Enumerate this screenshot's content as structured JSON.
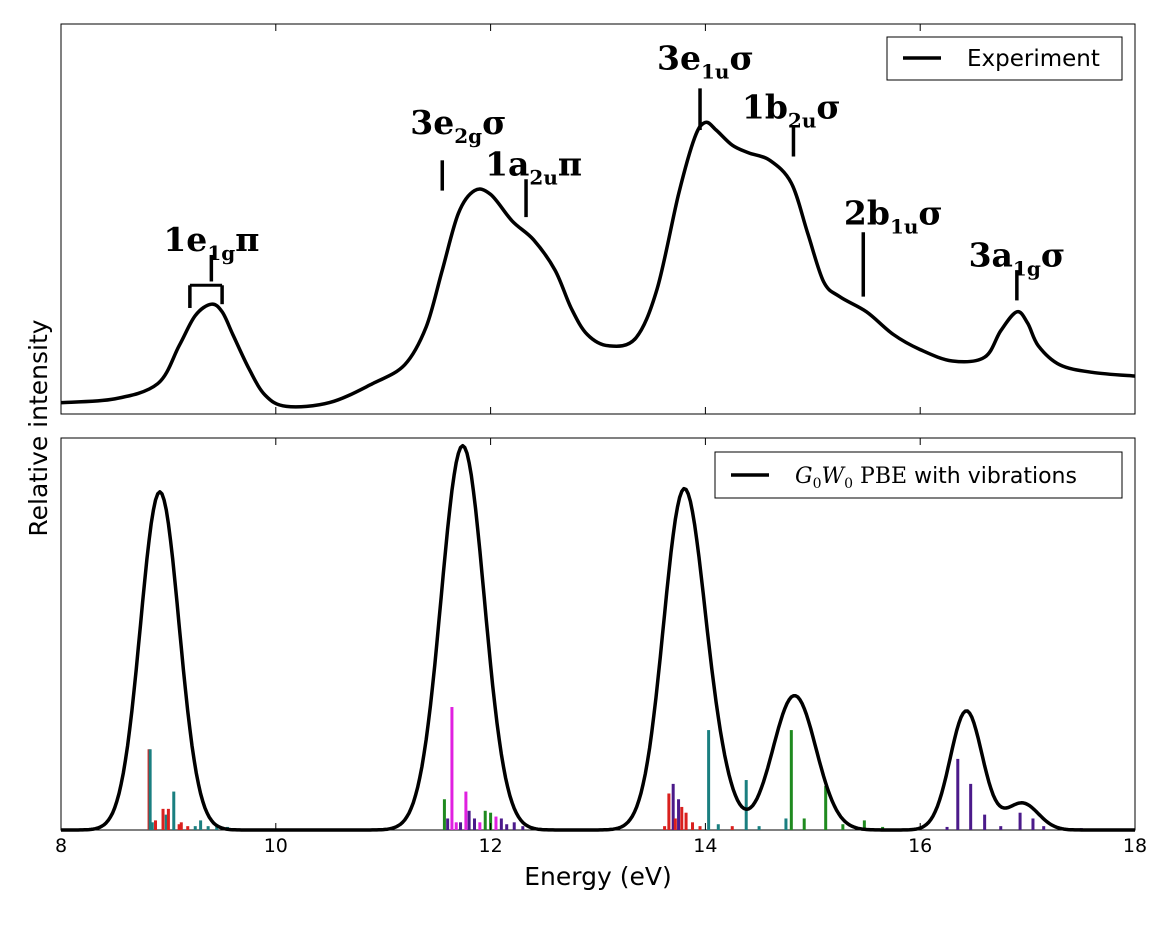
{
  "figure": {
    "ylabel": "Relative intensity",
    "xlabel": "Energy (eV)"
  },
  "chart_data": [
    {
      "type": "line",
      "panel": "top",
      "legend_position": "top-right",
      "series": [
        {
          "name": "Experiment",
          "color": "#000000",
          "x": [
            8.0,
            8.5,
            8.9,
            9.1,
            9.25,
            9.4,
            9.5,
            9.6,
            9.75,
            9.9,
            10.1,
            10.5,
            10.9,
            11.2,
            11.4,
            11.55,
            11.7,
            11.85,
            12.0,
            12.2,
            12.4,
            12.6,
            12.75,
            12.9,
            13.1,
            13.35,
            13.55,
            13.75,
            13.9,
            14.0,
            14.1,
            14.25,
            14.4,
            14.6,
            14.8,
            14.95,
            15.1,
            15.25,
            15.5,
            15.75,
            16.0,
            16.3,
            16.6,
            16.75,
            16.9,
            17.0,
            17.1,
            17.3,
            17.6,
            18.0
          ],
          "y": [
            0.0,
            0.01,
            0.05,
            0.15,
            0.23,
            0.26,
            0.24,
            0.18,
            0.09,
            0.02,
            -0.01,
            0.0,
            0.05,
            0.1,
            0.2,
            0.35,
            0.5,
            0.56,
            0.55,
            0.48,
            0.43,
            0.35,
            0.25,
            0.18,
            0.15,
            0.17,
            0.3,
            0.55,
            0.7,
            0.74,
            0.72,
            0.68,
            0.66,
            0.64,
            0.58,
            0.45,
            0.32,
            0.28,
            0.24,
            0.18,
            0.14,
            0.11,
            0.12,
            0.19,
            0.24,
            0.21,
            0.15,
            0.1,
            0.08,
            0.07
          ]
        }
      ],
      "annotations": [
        {
          "x": 9.4,
          "y": 0.4,
          "text": "1e",
          "sub": "1g",
          "sym": "π"
        },
        {
          "x": 11.7,
          "y": 0.71,
          "text": "3e",
          "sub": "2g",
          "sym": "σ"
        },
        {
          "x": 12.4,
          "y": 0.6,
          "text": "1a",
          "sub": "2u",
          "sym": "π"
        },
        {
          "x": 14.0,
          "y": 0.88,
          "text": "3e",
          "sub": "1u",
          "sym": "σ"
        },
        {
          "x": 14.8,
          "y": 0.75,
          "text": "1b",
          "sub": "2u",
          "sym": "σ"
        },
        {
          "x": 15.75,
          "y": 0.47,
          "text": "2b",
          "sub": "1u",
          "sym": "σ"
        },
        {
          "x": 16.9,
          "y": 0.36,
          "text": "3a",
          "sub": "1g",
          "sym": "σ"
        }
      ],
      "marker_ticks": [
        {
          "x": 9.4,
          "y0": 0.39,
          "y1": 0.32
        },
        {
          "x": 9.2,
          "y0": 0.31,
          "y1": 0.25
        },
        {
          "x": 9.5,
          "y0": 0.31,
          "y1": 0.26
        },
        {
          "x": 11.55,
          "y0": 0.64,
          "y1": 0.56
        },
        {
          "x": 12.33,
          "y0": 0.59,
          "y1": 0.49
        },
        {
          "x": 13.95,
          "y0": 0.83,
          "y1": 0.72
        },
        {
          "x": 14.82,
          "y0": 0.73,
          "y1": 0.65
        },
        {
          "x": 15.47,
          "y0": 0.45,
          "y1": 0.28
        },
        {
          "x": 16.9,
          "y0": 0.35,
          "y1": 0.27
        }
      ],
      "xlim": [
        8,
        18
      ],
      "ylim": [
        -0.03,
        1.0
      ]
    },
    {
      "type": "line",
      "panel": "bottom",
      "legend_position": "top-right",
      "series": [
        {
          "name": "G0W0 PBE with vibrations",
          "color": "#000000",
          "peaks": [
            {
              "center": 8.92,
              "height": 0.88,
              "width": 0.18
            },
            {
              "center": 11.74,
              "height": 1.0,
              "width": 0.2
            },
            {
              "center": 13.8,
              "height": 0.88,
              "width": 0.19
            },
            {
              "center": 14.12,
              "height": 0.08,
              "width": 0.15
            },
            {
              "center": 14.83,
              "height": 0.35,
              "width": 0.2
            },
            {
              "center": 16.43,
              "height": 0.31,
              "width": 0.15
            },
            {
              "center": 16.95,
              "height": 0.07,
              "width": 0.15
            }
          ]
        }
      ],
      "sticks": [
        {
          "x": 8.82,
          "h": 0.21,
          "color": "#d9201e"
        },
        {
          "x": 8.83,
          "h": 0.21,
          "color": "#1a7f80"
        },
        {
          "x": 8.85,
          "h": 0.02,
          "color": "#1a7f80"
        },
        {
          "x": 8.88,
          "h": 0.025,
          "color": "#d9201e"
        },
        {
          "x": 8.95,
          "h": 0.055,
          "color": "#d9201e"
        },
        {
          "x": 8.98,
          "h": 0.04,
          "color": "#1a7f80"
        },
        {
          "x": 9.0,
          "h": 0.055,
          "color": "#d9201e"
        },
        {
          "x": 9.05,
          "h": 0.1,
          "color": "#1a7f80"
        },
        {
          "x": 9.1,
          "h": 0.015,
          "color": "#d9201e"
        },
        {
          "x": 9.12,
          "h": 0.02,
          "color": "#d9201e"
        },
        {
          "x": 9.18,
          "h": 0.01,
          "color": "#d9201e"
        },
        {
          "x": 9.25,
          "h": 0.01,
          "color": "#1a7f80"
        },
        {
          "x": 9.3,
          "h": 0.025,
          "color": "#1a7f80"
        },
        {
          "x": 9.37,
          "h": 0.01,
          "color": "#1a7f80"
        },
        {
          "x": 9.45,
          "h": 0.01,
          "color": "#1a7f80"
        },
        {
          "x": 9.55,
          "h": 0.008,
          "color": "#1a7f80"
        },
        {
          "x": 11.57,
          "h": 0.08,
          "color": "#1f8a1f"
        },
        {
          "x": 11.6,
          "h": 0.03,
          "color": "#4b1a8a"
        },
        {
          "x": 11.64,
          "h": 0.32,
          "color": "#e020e0"
        },
        {
          "x": 11.68,
          "h": 0.02,
          "color": "#e020e0"
        },
        {
          "x": 11.72,
          "h": 0.02,
          "color": "#4b1a8a"
        },
        {
          "x": 11.77,
          "h": 0.1,
          "color": "#e020e0"
        },
        {
          "x": 11.8,
          "h": 0.05,
          "color": "#4b1a8a"
        },
        {
          "x": 11.85,
          "h": 0.03,
          "color": "#4b1a8a"
        },
        {
          "x": 11.9,
          "h": 0.02,
          "color": "#e020e0"
        },
        {
          "x": 11.95,
          "h": 0.05,
          "color": "#1f8a1f"
        },
        {
          "x": 12.0,
          "h": 0.045,
          "color": "#1f8a1f"
        },
        {
          "x": 12.05,
          "h": 0.035,
          "color": "#e020e0"
        },
        {
          "x": 12.1,
          "h": 0.03,
          "color": "#4b1a8a"
        },
        {
          "x": 12.15,
          "h": 0.015,
          "color": "#4b1a8a"
        },
        {
          "x": 12.22,
          "h": 0.02,
          "color": "#4b1a8a"
        },
        {
          "x": 12.3,
          "h": 0.01,
          "color": "#4b1a8a"
        },
        {
          "x": 13.62,
          "h": 0.01,
          "color": "#d9201e"
        },
        {
          "x": 13.66,
          "h": 0.095,
          "color": "#d9201e"
        },
        {
          "x": 13.7,
          "h": 0.12,
          "color": "#4b1a8a"
        },
        {
          "x": 13.72,
          "h": 0.03,
          "color": "#d9201e"
        },
        {
          "x": 13.75,
          "h": 0.08,
          "color": "#4b1a8a"
        },
        {
          "x": 13.78,
          "h": 0.06,
          "color": "#d9201e"
        },
        {
          "x": 13.82,
          "h": 0.045,
          "color": "#d9201e"
        },
        {
          "x": 13.88,
          "h": 0.02,
          "color": "#d9201e"
        },
        {
          "x": 13.95,
          "h": 0.01,
          "color": "#d9201e"
        },
        {
          "x": 14.03,
          "h": 0.26,
          "color": "#1a7f80"
        },
        {
          "x": 14.12,
          "h": 0.015,
          "color": "#1a7f80"
        },
        {
          "x": 14.25,
          "h": 0.01,
          "color": "#d9201e"
        },
        {
          "x": 14.38,
          "h": 0.13,
          "color": "#1a7f80"
        },
        {
          "x": 14.5,
          "h": 0.01,
          "color": "#1a7f80"
        },
        {
          "x": 14.75,
          "h": 0.03,
          "color": "#1a7f80"
        },
        {
          "x": 14.8,
          "h": 0.26,
          "color": "#1f8a1f"
        },
        {
          "x": 14.92,
          "h": 0.03,
          "color": "#1f8a1f"
        },
        {
          "x": 15.12,
          "h": 0.115,
          "color": "#1f8a1f"
        },
        {
          "x": 15.28,
          "h": 0.015,
          "color": "#1f8a1f"
        },
        {
          "x": 15.48,
          "h": 0.025,
          "color": "#1f8a1f"
        },
        {
          "x": 15.65,
          "h": 0.008,
          "color": "#1f8a1f"
        },
        {
          "x": 16.25,
          "h": 0.008,
          "color": "#4b1a8a"
        },
        {
          "x": 16.35,
          "h": 0.185,
          "color": "#4b1a8a"
        },
        {
          "x": 16.47,
          "h": 0.12,
          "color": "#4b1a8a"
        },
        {
          "x": 16.6,
          "h": 0.04,
          "color": "#4b1a8a"
        },
        {
          "x": 16.75,
          "h": 0.01,
          "color": "#4b1a8a"
        },
        {
          "x": 16.93,
          "h": 0.045,
          "color": "#4b1a8a"
        },
        {
          "x": 17.05,
          "h": 0.03,
          "color": "#4b1a8a"
        },
        {
          "x": 17.15,
          "h": 0.01,
          "color": "#4b1a8a"
        },
        {
          "x": 17.5,
          "h": 0.005,
          "color": "#4b1a8a"
        }
      ],
      "xlim": [
        8,
        18
      ],
      "ylim": [
        0,
        1.02
      ],
      "xticks": [
        8,
        10,
        12,
        14,
        16,
        18
      ],
      "xtick_labels": [
        "8",
        "10",
        "12",
        "14",
        "16",
        "18"
      ]
    }
  ]
}
